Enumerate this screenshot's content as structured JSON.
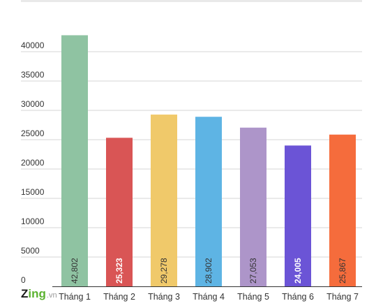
{
  "chart_data": {
    "type": "bar",
    "categories": [
      "Tháng 1",
      "Tháng 2",
      "Tháng 3",
      "Tháng 4",
      "Tháng 5",
      "Tháng 6",
      "Tháng 7"
    ],
    "values": [
      42802,
      25323,
      29278,
      28902,
      27053,
      24005,
      25867
    ],
    "value_labels": [
      "42,802",
      "25,323",
      "29,278",
      "28,902",
      "27,053",
      "24,005",
      "25,867"
    ],
    "colors": [
      "#8fc3a2",
      "#d95555",
      "#f0c96a",
      "#5eb4e4",
      "#ad95c9",
      "#6b54d6",
      "#f56c3c"
    ],
    "value_label_colors": [
      "#333333",
      "#ffffff",
      "#333333",
      "#333333",
      "#333333",
      "#ffffff",
      "#333333"
    ],
    "yticks": [
      0,
      5000,
      10000,
      15000,
      20000,
      25000,
      30000,
      35000,
      40000
    ],
    "ylim": [
      0,
      45000
    ],
    "grid": true,
    "value_label_orientation": "vertical-inside-bar-bottom"
  },
  "watermark": {
    "brand_z": "Z",
    "brand_ing": "ing",
    "brand_vn": ".vn"
  }
}
